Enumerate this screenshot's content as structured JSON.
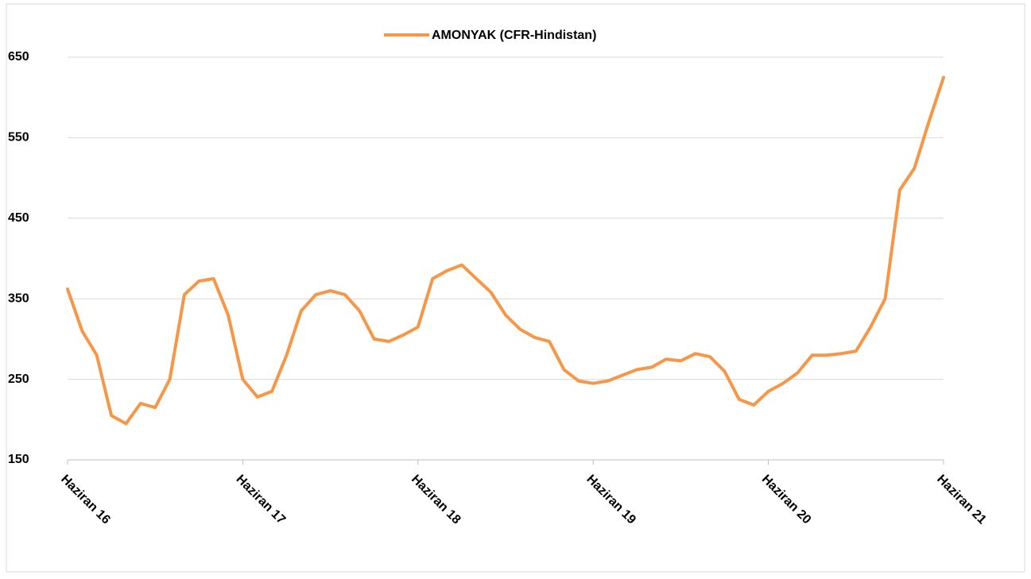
{
  "chart_data": {
    "type": "line",
    "legend_title": "AMONYAK (CFR-Hindistan)",
    "categories": [
      "Haziran 16",
      null,
      null,
      null,
      null,
      null,
      null,
      null,
      null,
      null,
      null,
      null,
      "Haziran 17",
      null,
      null,
      null,
      null,
      null,
      null,
      null,
      null,
      null,
      null,
      null,
      "Haziran 18",
      null,
      null,
      null,
      null,
      null,
      null,
      null,
      null,
      null,
      null,
      null,
      "Haziran 19",
      null,
      null,
      null,
      null,
      null,
      null,
      null,
      null,
      null,
      null,
      null,
      "Haziran 20",
      null,
      null,
      null,
      null,
      null,
      null,
      null,
      null,
      null,
      null,
      null,
      "Haziran 21"
    ],
    "series": [
      {
        "name": "AMONYAK (CFR-Hindistan)",
        "color": "#f79646",
        "values": [
          362,
          310,
          280,
          205,
          195,
          220,
          215,
          250,
          355,
          372,
          375,
          330,
          250,
          228,
          235,
          280,
          335,
          355,
          360,
          355,
          335,
          300,
          297,
          305,
          315,
          375,
          385,
          392,
          375,
          358,
          330,
          312,
          302,
          297,
          262,
          248,
          245,
          248,
          255,
          262,
          265,
          275,
          273,
          282,
          278,
          260,
          225,
          218,
          235,
          245,
          258,
          280,
          280,
          282,
          285,
          315,
          350,
          485,
          512,
          570,
          625
        ]
      }
    ],
    "ylim": [
      150,
      650
    ],
    "yticks": [
      150,
      250,
      350,
      450,
      550,
      650
    ],
    "grid": true
  }
}
